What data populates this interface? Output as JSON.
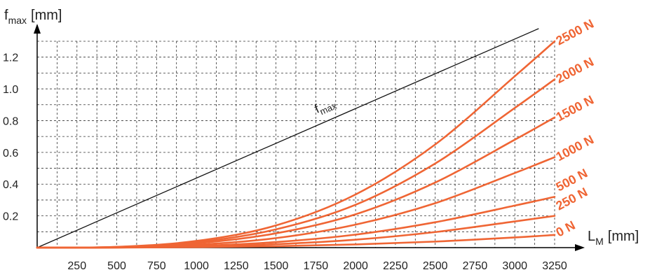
{
  "chart_data": {
    "type": "line",
    "xlabel": "L",
    "xlabel_sub": "M",
    "xlabel_unit": "[mm]",
    "ylabel": "f",
    "ylabel_sub": "max",
    "ylabel_unit": "[mm]",
    "xlim": [
      0,
      3250
    ],
    "ylim": [
      0,
      1.3
    ],
    "x_ticks": [
      250,
      500,
      750,
      1000,
      1250,
      1500,
      1750,
      2000,
      2250,
      2500,
      2750,
      3000,
      3250
    ],
    "y_ticks": [
      0.2,
      0.4,
      0.6,
      0.8,
      1.0,
      1.2
    ],
    "x_tick_labels": [
      "250",
      "500",
      "750",
      "1000",
      "1250",
      "1500",
      "1750",
      "2000",
      "2250",
      "2500",
      "2750",
      "3000",
      "3250"
    ],
    "y_tick_labels": [
      "0.2",
      "0.4",
      "0.6",
      "0.8",
      "1.0",
      "1.2"
    ],
    "grid": true,
    "reference_line": {
      "label": "f",
      "label_sub": "max",
      "x": [
        0,
        3150
      ],
      "y": [
        0,
        1.38
      ]
    },
    "series": [
      {
        "name": "0 N",
        "x": [
          0,
          500,
          1000,
          1500,
          2000,
          2500,
          3000,
          3250
        ],
        "y": [
          0,
          0.0,
          0.003,
          0.009,
          0.02,
          0.038,
          0.064,
          0.08
        ]
      },
      {
        "name": "250 N",
        "x": [
          0,
          500,
          1000,
          1500,
          2000,
          2500,
          3000,
          3250
        ],
        "y": [
          0,
          0.001,
          0.006,
          0.022,
          0.05,
          0.098,
          0.165,
          0.2
        ]
      },
      {
        "name": "500 N",
        "x": [
          0,
          500,
          1000,
          1500,
          2000,
          2500,
          3000,
          3250
        ],
        "y": [
          0,
          0.001,
          0.01,
          0.035,
          0.082,
          0.16,
          0.265,
          0.32
        ]
      },
      {
        "name": "1000 N",
        "x": [
          0,
          500,
          1000,
          1500,
          2000,
          2500,
          3000,
          3250
        ],
        "y": [
          0,
          0.002,
          0.018,
          0.06,
          0.145,
          0.28,
          0.47,
          0.57
        ]
      },
      {
        "name": "1500 N",
        "x": [
          0,
          500,
          1000,
          1500,
          2000,
          2500,
          3000,
          3250
        ],
        "y": [
          0,
          0.003,
          0.027,
          0.09,
          0.21,
          0.41,
          0.68,
          0.82
        ]
      },
      {
        "name": "2000 N",
        "x": [
          0,
          500,
          1000,
          1500,
          2000,
          2500,
          3000,
          3250
        ],
        "y": [
          0,
          0.004,
          0.034,
          0.115,
          0.27,
          0.53,
          0.88,
          1.06
        ]
      },
      {
        "name": "2500 N",
        "x": [
          0,
          500,
          1000,
          1500,
          2000,
          2500,
          3000,
          3250
        ],
        "y": [
          0,
          0.005,
          0.042,
          0.14,
          0.335,
          0.65,
          1.08,
          1.3
        ]
      }
    ],
    "colors": {
      "series": "#ef6534",
      "reference": "#111111",
      "grid": "#333333",
      "axis": "#000000"
    }
  }
}
